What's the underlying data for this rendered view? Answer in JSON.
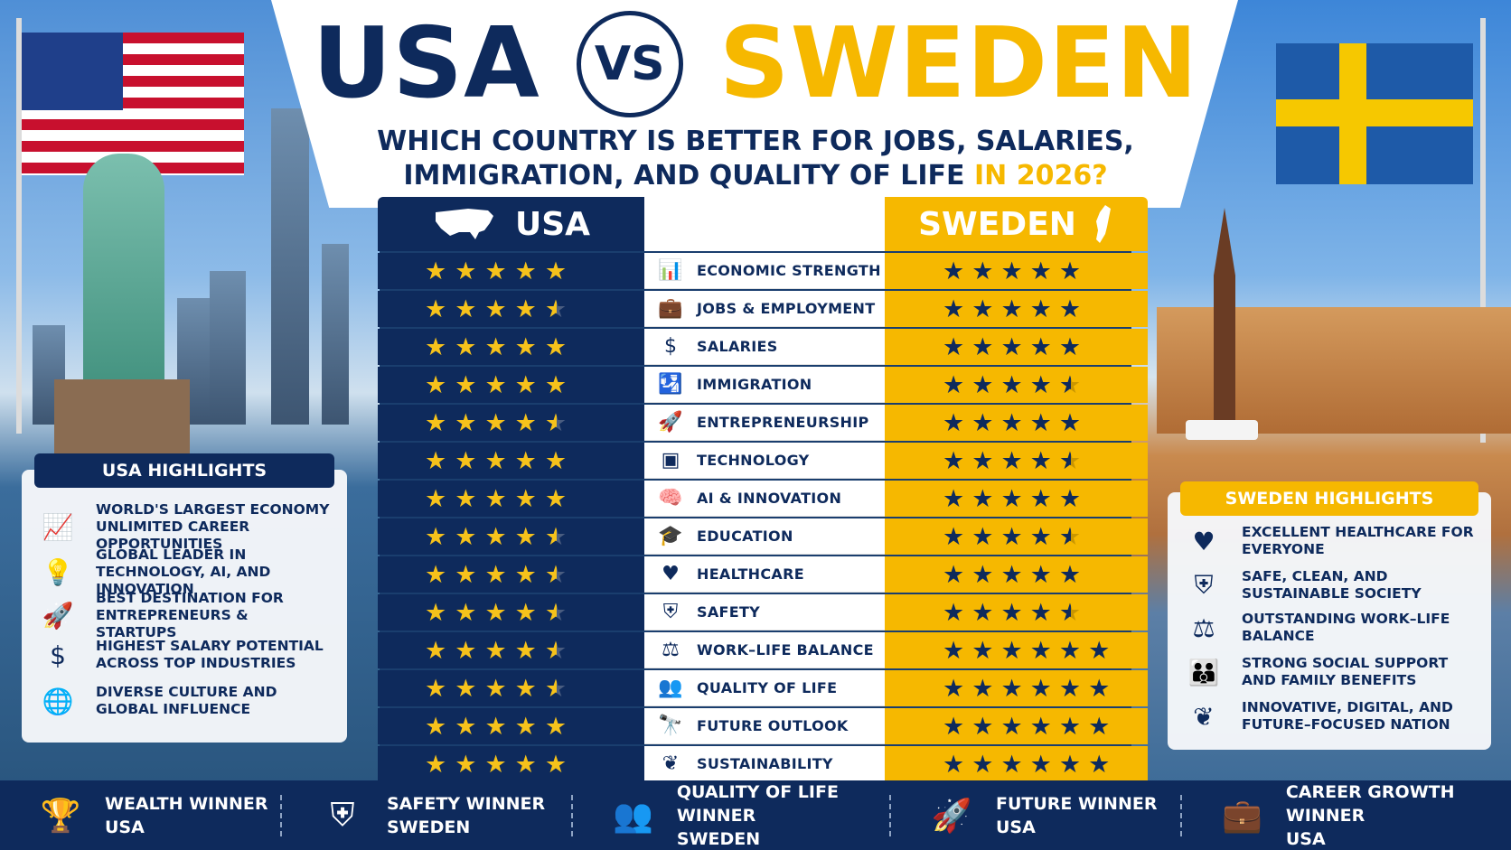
{
  "title": {
    "left": "USA",
    "vs": "VS",
    "right": "SWEDEN"
  },
  "subtitle": {
    "line1": "WHICH COUNTRY IS BETTER FOR JOBS, SALARIES,",
    "line2": "IMMIGRATION, AND QUALITY OF LIFE",
    "accent": "IN 2026?"
  },
  "table": {
    "usa_header": "USA",
    "sweden_header": "SWEDEN",
    "rows": [
      {
        "category": "ECONOMIC STRENGTH",
        "icon": "bar-chart-icon",
        "usa": 5,
        "sweden": 5
      },
      {
        "category": "JOBS & EMPLOYMENT",
        "icon": "briefcase-icon",
        "usa": 4.5,
        "sweden": 5
      },
      {
        "category": "SALARIES",
        "icon": "dollar-icon",
        "usa": 5,
        "sweden": 5
      },
      {
        "category": "IMMIGRATION",
        "icon": "passport-icon",
        "usa": 5,
        "sweden": 4.5
      },
      {
        "category": "ENTREPRENEURSHIP",
        "icon": "rocket-icon",
        "usa": 4.5,
        "sweden": 5
      },
      {
        "category": "TECHNOLOGY",
        "icon": "chip-icon",
        "usa": 5,
        "sweden": 4.5
      },
      {
        "category": "AI & INNOVATION",
        "icon": "brain-icon",
        "usa": 5,
        "sweden": 5
      },
      {
        "category": "EDUCATION",
        "icon": "graduation-cap-icon",
        "usa": 4.5,
        "sweden": 4.5
      },
      {
        "category": "HEALTHCARE",
        "icon": "heart-pulse-icon",
        "usa": 4.5,
        "sweden": 5
      },
      {
        "category": "SAFETY",
        "icon": "shield-icon",
        "usa": 4.5,
        "sweden": 4.5
      },
      {
        "category": "WORK–LIFE BALANCE",
        "icon": "scales-icon",
        "usa": 4.5,
        "sweden": 6
      },
      {
        "category": "QUALITY OF LIFE",
        "icon": "people-icon",
        "usa": 4.5,
        "sweden": 6
      },
      {
        "category": "FUTURE OUTLOOK",
        "icon": "telescope-icon",
        "usa": 5,
        "sweden": 6
      },
      {
        "category": "SUSTAINABILITY",
        "icon": "leaf-icon",
        "usa": 5,
        "sweden": 6
      }
    ]
  },
  "usa_highlights": {
    "title": "USA HIGHLIGHTS",
    "items": [
      {
        "icon": "growth-chart-icon",
        "text": "WORLD'S LARGEST ECONOMY UNLIMITED CAREER OPPORTUNITIES"
      },
      {
        "icon": "lightbulb-icon",
        "text": "GLOBAL LEADER IN TECHNOLOGY, AI, AND INNOVATION"
      },
      {
        "icon": "rocket-icon",
        "text": "BEST DESTINATION FOR ENTREPRENEURS & STARTUPS"
      },
      {
        "icon": "dollar-icon",
        "text": "HIGHEST SALARY POTENTIAL ACROSS TOP INDUSTRIES"
      },
      {
        "icon": "globe-icon",
        "text": "DIVERSE CULTURE AND GLOBAL INFLUENCE"
      }
    ]
  },
  "sweden_highlights": {
    "title": "SWEDEN HIGHLIGHTS",
    "items": [
      {
        "icon": "heart-pulse-icon",
        "text": "EXCELLENT HEALTHCARE FOR EVERYONE"
      },
      {
        "icon": "shield-icon",
        "text": "SAFE, CLEAN, AND SUSTAINABLE SOCIETY"
      },
      {
        "icon": "scales-icon",
        "text": "OUTSTANDING WORK–LIFE BALANCE"
      },
      {
        "icon": "family-icon",
        "text": "STRONG SOCIAL SUPPORT AND FAMILY BENEFITS"
      },
      {
        "icon": "leaf-icon",
        "text": "INNOVATIVE, DIGITAL, AND FUTURE–FOCUSED NATION"
      }
    ]
  },
  "winners": [
    {
      "icon": "trophy-icon",
      "label": "WEALTH WINNER",
      "country": "USA"
    },
    {
      "icon": "shield-icon",
      "label": "SAFETY WINNER",
      "country": "SWEDEN"
    },
    {
      "icon": "people-icon",
      "label": "QUALITY OF LIFE WINNER",
      "country": "SWEDEN"
    },
    {
      "icon": "rocket-icon",
      "label": "FUTURE WINNER",
      "country": "USA"
    },
    {
      "icon": "briefcase-icon",
      "label": "CAREER GROWTH WINNER",
      "country": "USA"
    }
  ],
  "colors": {
    "navy": "#0e2a5c",
    "gold": "#f6b800",
    "usa_star": "#f6c21b"
  }
}
